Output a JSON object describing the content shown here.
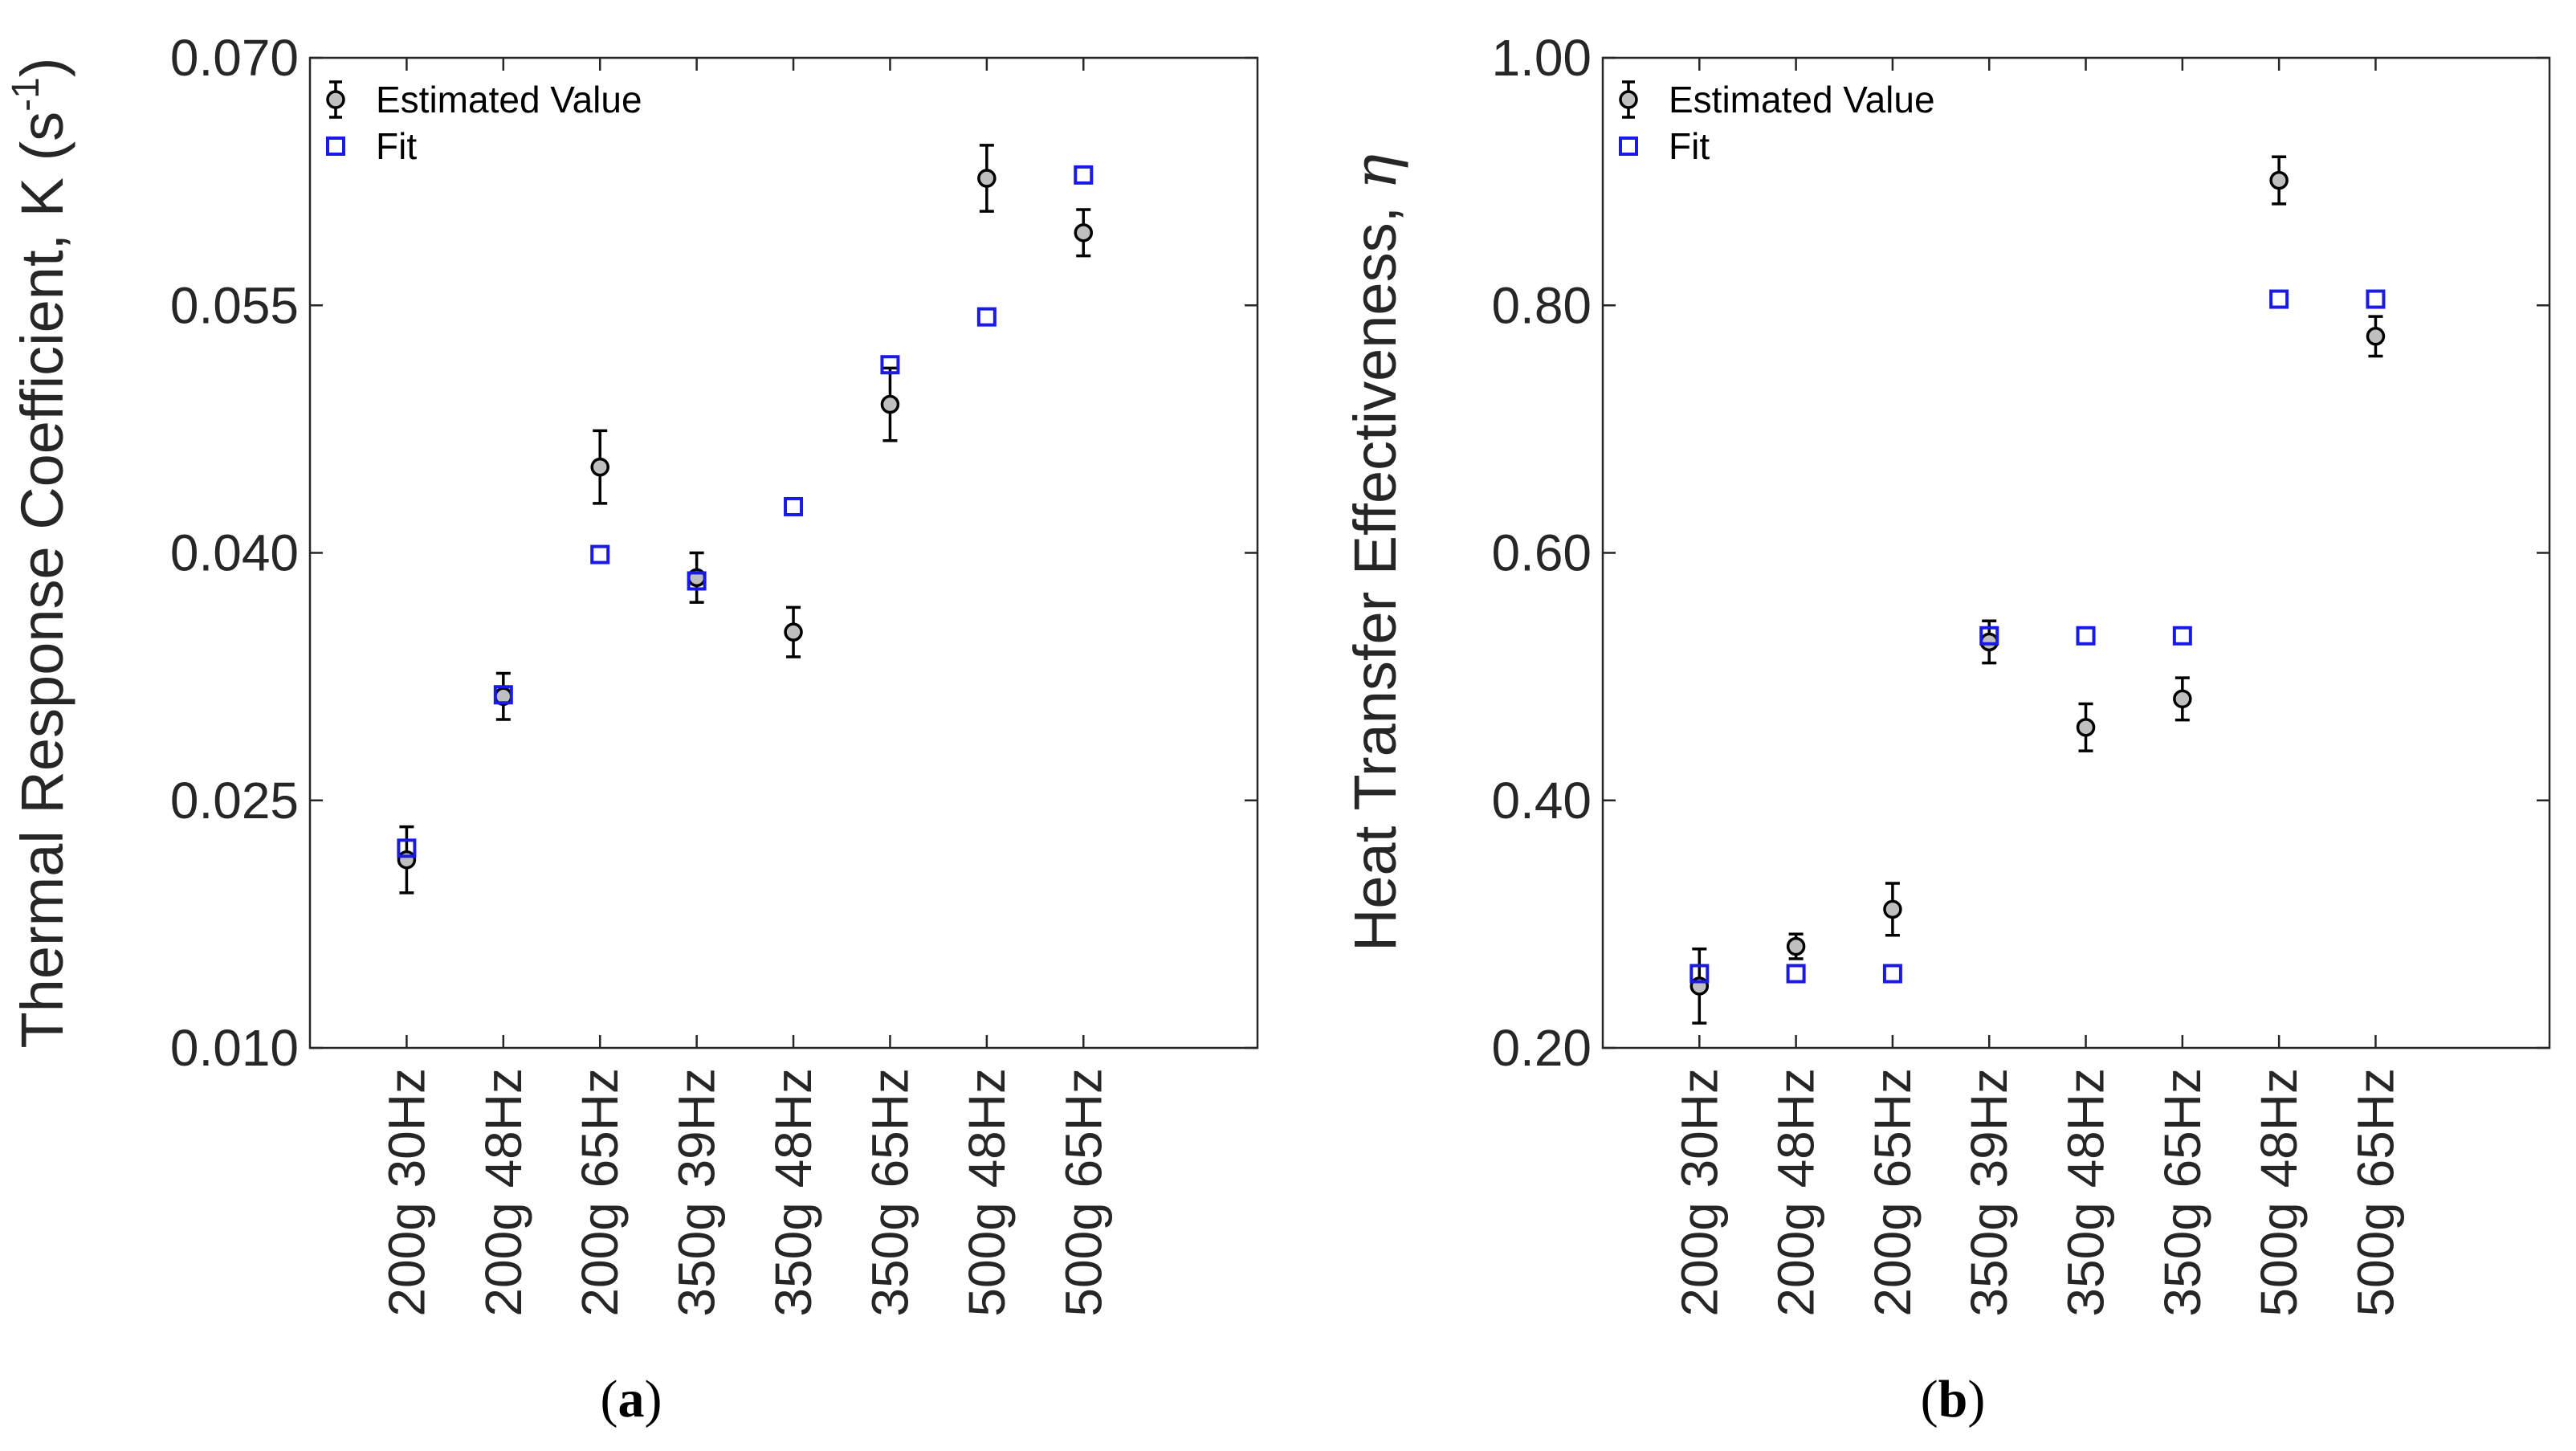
{
  "chart_data": [
    {
      "type": "scatter",
      "panel_label": "a",
      "ylabel_main": "Thermal Response Coefficient, K (s",
      "ylabel_sup": "-1",
      "ylabel_close": ")",
      "categories": [
        "200g 30Hz",
        "200g 48Hz",
        "200g 65Hz",
        "350g 39Hz",
        "350g 48Hz",
        "350g 65Hz",
        "500g 48Hz",
        "500g 65Hz"
      ],
      "ylim": [
        0.01,
        0.07
      ],
      "yticks": [
        0.01,
        0.025,
        0.04,
        0.055,
        0.07
      ],
      "ytick_labels": [
        "0.010",
        "0.025",
        "0.040",
        "0.055",
        "0.070"
      ],
      "legend": [
        "Estimated Value",
        "Fit"
      ],
      "series": [
        {
          "name": "Estimated Value",
          "values": [
            0.0214,
            0.0313,
            0.0452,
            0.0385,
            0.0352,
            0.049,
            0.0627,
            0.0594
          ],
          "err": [
            0.002,
            0.0014,
            0.0022,
            0.0015,
            0.0015,
            0.0022,
            0.002,
            0.0014
          ]
        },
        {
          "name": "Fit",
          "values": [
            0.0221,
            0.0314,
            0.0399,
            0.0383,
            0.0428,
            0.0514,
            0.0543,
            0.0629
          ]
        }
      ]
    },
    {
      "type": "scatter",
      "panel_label": "b",
      "ylabel_main": "Heat Transfer Effectiveness, ",
      "ylabel_symbol": "η",
      "categories": [
        "200g 30Hz",
        "200g 48Hz",
        "200g 65Hz",
        "350g 39Hz",
        "350g 48Hz",
        "350g 65Hz",
        "500g 48Hz",
        "500g 65Hz"
      ],
      "ylim": [
        0.2,
        1.0
      ],
      "yticks": [
        0.2,
        0.4,
        0.6,
        0.8,
        1.0
      ],
      "ytick_labels": [
        "0.20",
        "0.40",
        "0.60",
        "0.80",
        "1.00"
      ],
      "legend": [
        "Estimated Value",
        "Fit"
      ],
      "series": [
        {
          "name": "Estimated Value",
          "values": [
            0.25,
            0.282,
            0.312,
            0.528,
            0.459,
            0.482,
            0.901,
            0.775
          ],
          "err": [
            0.03,
            0.01,
            0.021,
            0.017,
            0.019,
            0.017,
            0.019,
            0.016
          ]
        },
        {
          "name": "Fit",
          "values": [
            0.26,
            0.26,
            0.26,
            0.533,
            0.533,
            0.533,
            0.805,
            0.805
          ]
        }
      ]
    }
  ]
}
